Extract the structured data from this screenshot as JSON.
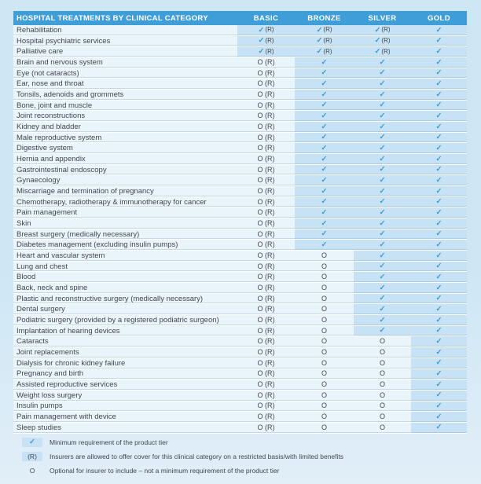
{
  "colors": {
    "header_bg": "#3f9dd8",
    "row_bg": "#eaf4fb",
    "hl_bg": "#c6e2f4",
    "check": "#3e9ad3",
    "ink": "#42474b",
    "page_top": "#cde7f5",
    "page_bottom": "#e2eef8"
  },
  "table": {
    "header": {
      "category": "HOSPITAL TREATMENTS BY CLINICAL CATEGORY",
      "tiers": [
        "BASIC",
        "BRONZE",
        "SILVER",
        "GOLD"
      ]
    },
    "rows": [
      {
        "category": "Rehabilitation",
        "values": [
          "✓(R)",
          "✓(R)",
          "✓(R)",
          "✓"
        ],
        "highlight_from": 0
      },
      {
        "category": "Hospital psychiatric services",
        "values": [
          "✓(R)",
          "✓(R)",
          "✓(R)",
          "✓"
        ],
        "highlight_from": 0
      },
      {
        "category": "Palliative care",
        "values": [
          "✓(R)",
          "✓(R)",
          "✓(R)",
          "✓"
        ],
        "highlight_from": 0
      },
      {
        "category": "Brain and nervous system",
        "values": [
          "O (R)",
          "✓",
          "✓",
          "✓"
        ],
        "highlight_from": 1
      },
      {
        "category": "Eye (not cataracts)",
        "values": [
          "O (R)",
          "✓",
          "✓",
          "✓"
        ],
        "highlight_from": 1
      },
      {
        "category": "Ear, nose and throat",
        "values": [
          "O (R)",
          "✓",
          "✓",
          "✓"
        ],
        "highlight_from": 1
      },
      {
        "category": "Tonsils, adenoids and grommets",
        "values": [
          "O (R)",
          "✓",
          "✓",
          "✓"
        ],
        "highlight_from": 1
      },
      {
        "category": "Bone, joint and muscle",
        "values": [
          "O (R)",
          "✓",
          "✓",
          "✓"
        ],
        "highlight_from": 1
      },
      {
        "category": "Joint reconstructions",
        "values": [
          "O (R)",
          "✓",
          "✓",
          "✓"
        ],
        "highlight_from": 1
      },
      {
        "category": "Kidney and bladder",
        "values": [
          "O (R)",
          "✓",
          "✓",
          "✓"
        ],
        "highlight_from": 1
      },
      {
        "category": "Male reproductive system",
        "values": [
          "O (R)",
          "✓",
          "✓",
          "✓"
        ],
        "highlight_from": 1
      },
      {
        "category": "Digestive system",
        "values": [
          "O (R)",
          "✓",
          "✓",
          "✓"
        ],
        "highlight_from": 1
      },
      {
        "category": "Hernia and appendix",
        "values": [
          "O (R)",
          "✓",
          "✓",
          "✓"
        ],
        "highlight_from": 1
      },
      {
        "category": "Gastrointestinal endoscopy",
        "values": [
          "O (R)",
          "✓",
          "✓",
          "✓"
        ],
        "highlight_from": 1
      },
      {
        "category": "Gynaecology",
        "values": [
          "O (R)",
          "✓",
          "✓",
          "✓"
        ],
        "highlight_from": 1
      },
      {
        "category": "Miscarriage and termination of pregnancy",
        "values": [
          "O (R)",
          "✓",
          "✓",
          "✓"
        ],
        "highlight_from": 1
      },
      {
        "category": "Chemotherapy, radiotherapy & immunotherapy for cancer",
        "values": [
          "O (R)",
          "✓",
          "✓",
          "✓"
        ],
        "highlight_from": 1
      },
      {
        "category": "Pain management",
        "values": [
          "O (R)",
          "✓",
          "✓",
          "✓"
        ],
        "highlight_from": 1
      },
      {
        "category": "Skin",
        "values": [
          "O (R)",
          "✓",
          "✓",
          "✓"
        ],
        "highlight_from": 1
      },
      {
        "category": "Breast surgery (medically necessary)",
        "values": [
          "O (R)",
          "✓",
          "✓",
          "✓"
        ],
        "highlight_from": 1
      },
      {
        "category": "Diabetes management (excluding insulin pumps)",
        "values": [
          "O (R)",
          "✓",
          "✓",
          "✓"
        ],
        "highlight_from": 1
      },
      {
        "category": "Heart and vascular system",
        "values": [
          "O (R)",
          "O",
          "✓",
          "✓"
        ],
        "highlight_from": 2
      },
      {
        "category": "Lung and chest",
        "values": [
          "O (R)",
          "O",
          "✓",
          "✓"
        ],
        "highlight_from": 2
      },
      {
        "category": "Blood",
        "values": [
          "O (R)",
          "O",
          "✓",
          "✓"
        ],
        "highlight_from": 2
      },
      {
        "category": "Back, neck and spine",
        "values": [
          "O (R)",
          "O",
          "✓",
          "✓"
        ],
        "highlight_from": 2
      },
      {
        "category": "Plastic and reconstructive surgery (medically necessary)",
        "values": [
          "O (R)",
          "O",
          "✓",
          "✓"
        ],
        "highlight_from": 2
      },
      {
        "category": "Dental surgery",
        "values": [
          "O (R)",
          "O",
          "✓",
          "✓"
        ],
        "highlight_from": 2
      },
      {
        "category": "Podiatric surgery (provided by a registered podiatric surgeon)",
        "values": [
          "O (R)",
          "O",
          "✓",
          "✓"
        ],
        "highlight_from": 2
      },
      {
        "category": "Implantation of hearing devices",
        "values": [
          "O (R)",
          "O",
          "✓",
          "✓"
        ],
        "highlight_from": 2
      },
      {
        "category": "Cataracts",
        "values": [
          "O (R)",
          "O",
          "O",
          "✓"
        ],
        "highlight_from": 3
      },
      {
        "category": "Joint replacements",
        "values": [
          "O (R)",
          "O",
          "O",
          "✓"
        ],
        "highlight_from": 3
      },
      {
        "category": "Dialysis for chronic kidney failure",
        "values": [
          "O (R)",
          "O",
          "O",
          "✓"
        ],
        "highlight_from": 3
      },
      {
        "category": "Pregnancy and birth",
        "values": [
          "O (R)",
          "O",
          "O",
          "✓"
        ],
        "highlight_from": 3
      },
      {
        "category": "Assisted reproductive services",
        "values": [
          "O (R)",
          "O",
          "O",
          "✓"
        ],
        "highlight_from": 3
      },
      {
        "category": "Weight loss surgery",
        "values": [
          "O (R)",
          "O",
          "O",
          "✓"
        ],
        "highlight_from": 3
      },
      {
        "category": "Insulin pumps",
        "values": [
          "O (R)",
          "O",
          "O",
          "✓"
        ],
        "highlight_from": 3
      },
      {
        "category": "Pain management with device",
        "values": [
          "O (R)",
          "O",
          "O",
          "✓"
        ],
        "highlight_from": 3
      },
      {
        "category": "Sleep studies",
        "values": [
          "O (R)",
          "O",
          "O",
          "✓"
        ],
        "highlight_from": 3
      }
    ]
  },
  "legend": {
    "items": [
      {
        "symbol": "✓",
        "boxed": true,
        "style": "check",
        "text": "Minimum requirement of the product tier"
      },
      {
        "symbol": "(R)",
        "boxed": true,
        "style": "dark",
        "text": "Insurers are allowed to offer cover for this clinical category on a restricted basis/with limited benefits"
      },
      {
        "symbol": "O",
        "boxed": false,
        "style": "dark",
        "text": "Optional for insurer to include – not a minimum requirement of the product tier"
      }
    ]
  }
}
